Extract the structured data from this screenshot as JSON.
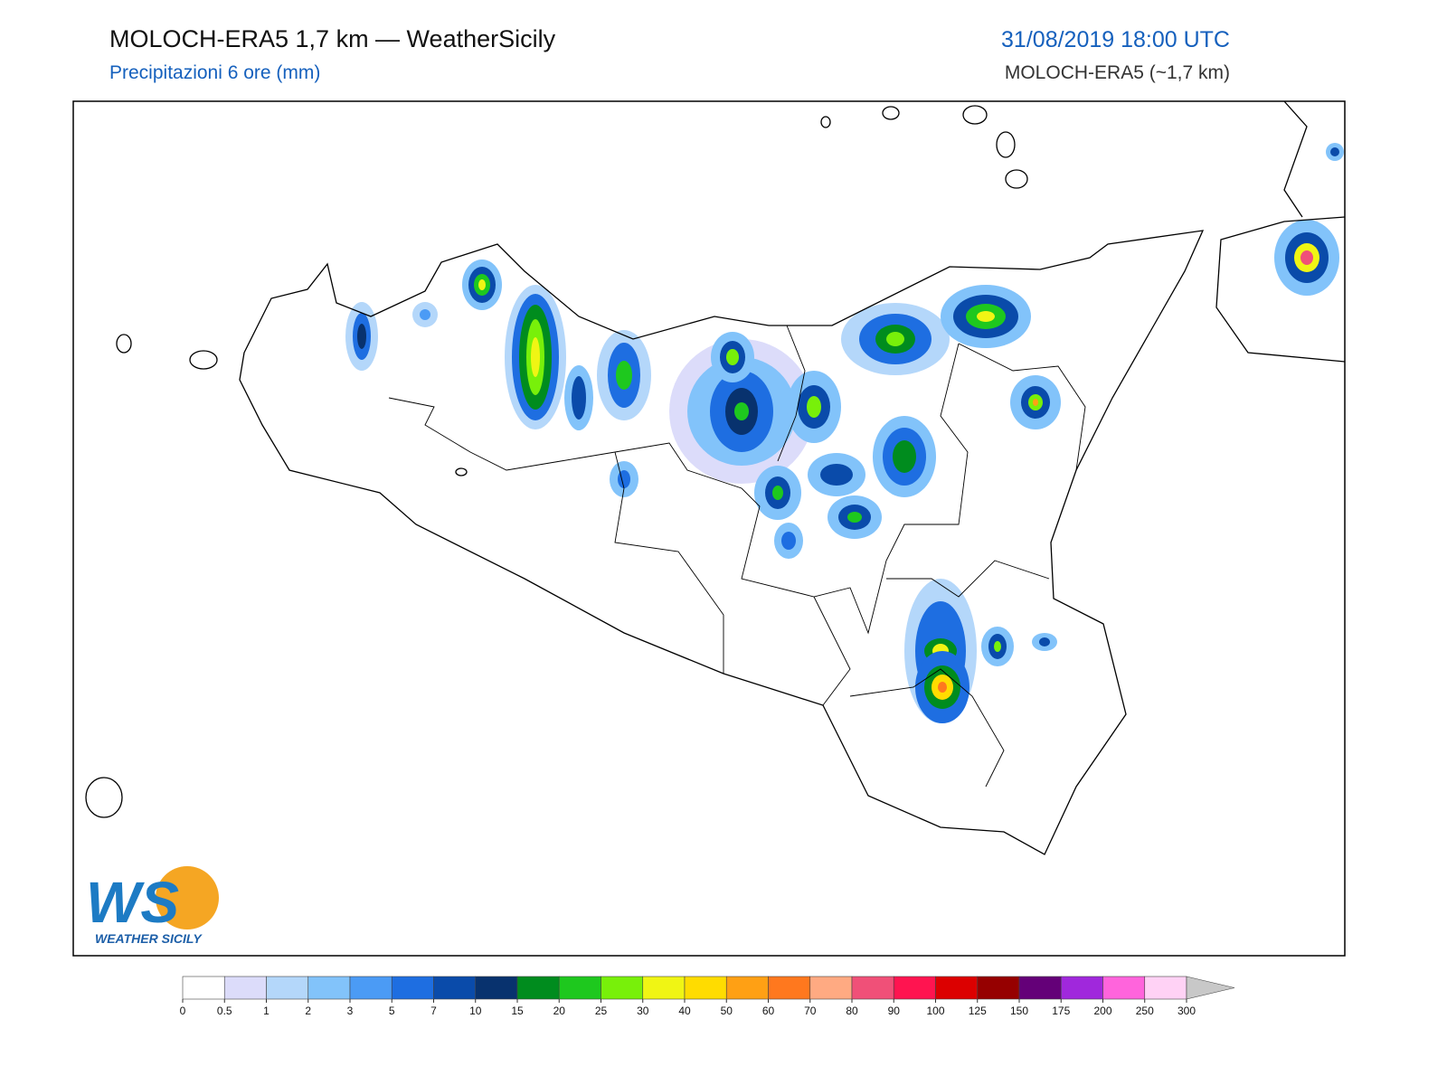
{
  "header": {
    "title": "MOLOCH-ERA5 1,7 km — WeatherSicily",
    "subtitle": "Precipitazioni 6 ore (mm)",
    "date": "31/08/2019 18:00 UTC",
    "model": "MOLOCH-ERA5 (~1,7 km)"
  },
  "colorbar": {
    "ticks": [
      0,
      0.5,
      1,
      2,
      3,
      5,
      7,
      10,
      15,
      20,
      25,
      30,
      40,
      50,
      60,
      70,
      80,
      90,
      100,
      125,
      150,
      175,
      200,
      250,
      300
    ],
    "colors": [
      "#ffffff",
      "#dcdcfa",
      "#b4d7fa",
      "#82c3fa",
      "#4b9bf5",
      "#1e6ee1",
      "#0a4baa",
      "#08326e",
      "#008c1e",
      "#1ec81e",
      "#78f00a",
      "#f0f514",
      "#ffdc00",
      "#ffa014",
      "#ff781e",
      "#ffaa82",
      "#f05078",
      "#ff1450",
      "#dc0000",
      "#960000",
      "#640078",
      "#a028dc",
      "#ff64dc",
      "#ffd2f5"
    ],
    "extend_color": "#c8c8c8"
  },
  "logo": {
    "letters": "WS",
    "name": "WEATHER SICILY"
  }
}
